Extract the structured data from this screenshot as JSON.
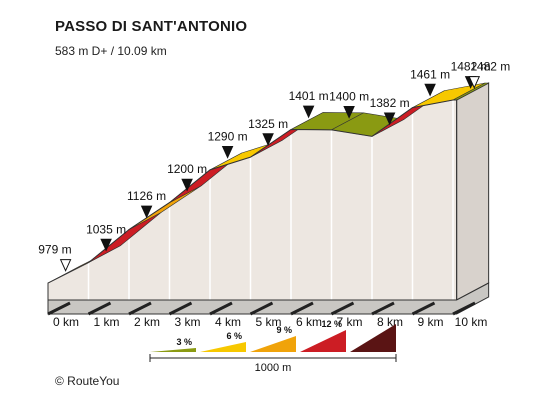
{
  "chart_data": {
    "type": "area",
    "title": "PASSO DI SANT'ANTONIO",
    "subtitle": "583 m D+ / 10.09 km",
    "x_unit": "km",
    "elevation_unit": "m",
    "x_ticks": [
      "0 km",
      "1 km",
      "2 km",
      "3 km",
      "4 km",
      "5 km",
      "6 km",
      "7 km",
      "8 km",
      "9 km",
      "10 km"
    ],
    "points": [
      {
        "km": 0,
        "elevation": 979,
        "label": "979 m",
        "marker": "start"
      },
      {
        "km": 1,
        "elevation": 1035,
        "label": "1035 m",
        "marker": "point"
      },
      {
        "km": 2,
        "elevation": 1126,
        "label": "1126 m",
        "marker": "point"
      },
      {
        "km": 3,
        "elevation": 1200,
        "label": "1200 m",
        "marker": "point"
      },
      {
        "km": 4,
        "elevation": 1290,
        "label": "1290 m",
        "marker": "point"
      },
      {
        "km": 5,
        "elevation": 1325,
        "label": "1325 m",
        "marker": "point"
      },
      {
        "km": 6,
        "elevation": 1401,
        "label": "1401 m",
        "marker": "point"
      },
      {
        "km": 7,
        "elevation": 1400,
        "label": "1400 m",
        "marker": "point"
      },
      {
        "km": 8,
        "elevation": 1382,
        "label": "1382 m",
        "marker": "point"
      },
      {
        "km": 9,
        "elevation": 1461,
        "label": "1461 m",
        "marker": "point"
      },
      {
        "km": 10,
        "elevation": 1482,
        "label": "1482 m",
        "marker": "point"
      },
      {
        "km": 10.09,
        "elevation": 1482,
        "label": "1482 m",
        "marker": "end"
      }
    ],
    "gradient_legend": [
      {
        "label": "3 %",
        "color": "#8a9a12"
      },
      {
        "label": "6 %",
        "color": "#f7c800"
      },
      {
        "label": "9 %",
        "color": "#f0a30a"
      },
      {
        "label": "12 %",
        "color": "#cc1d24"
      },
      {
        "label": "",
        "color": "#5a1414"
      }
    ],
    "scale_label": "1000 m"
  },
  "colors": {
    "front_face": "#ede7e1",
    "bottom_band": "#c9c7c3",
    "km_divider": "#ffffff",
    "outline": "#333333",
    "marker": "#111111"
  },
  "footer": {
    "credit": "© RouteYou"
  }
}
